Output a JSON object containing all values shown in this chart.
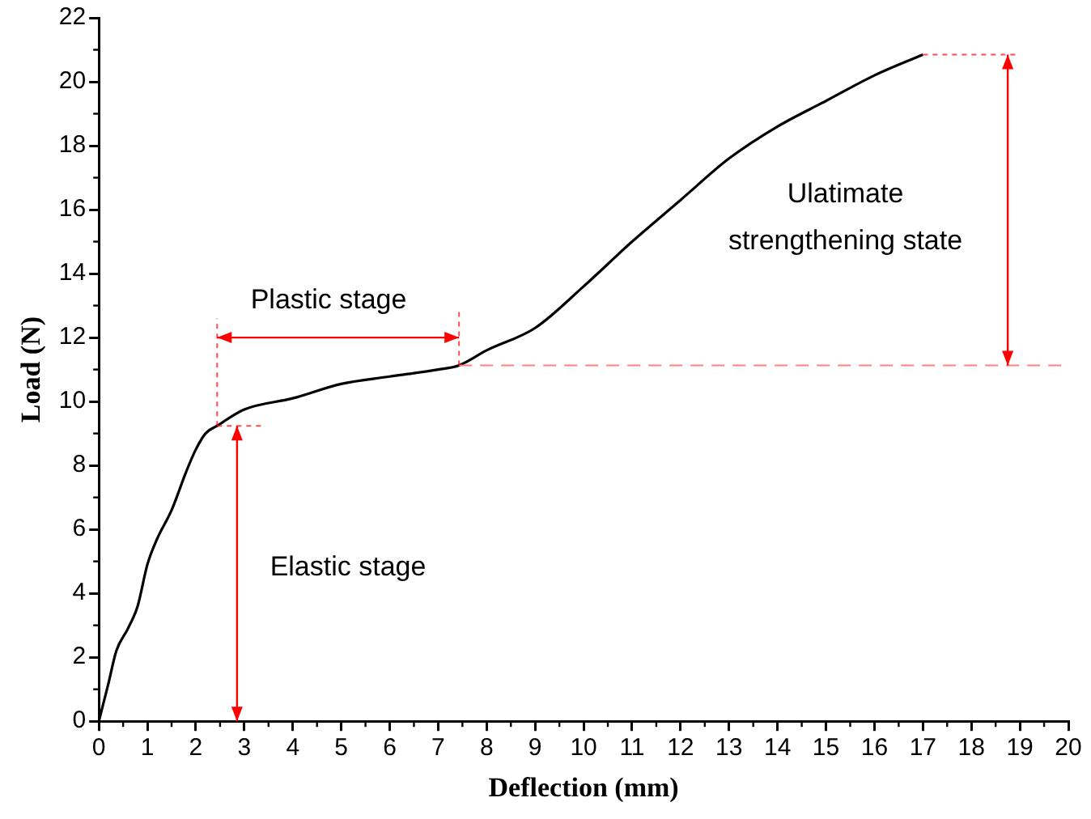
{
  "chart_data": {
    "type": "line",
    "xlabel": "Deflection (mm)",
    "ylabel": "Load (N)",
    "x": [
      0,
      0.2,
      0.36,
      0.6,
      0.8,
      1,
      1.2,
      1.5,
      1.8,
      2,
      2.2,
      2.44,
      3,
      4,
      5,
      6,
      7,
      7.43,
      8,
      9,
      10,
      11,
      12,
      13,
      14,
      15,
      16,
      17
    ],
    "series": [
      {
        "color": "#000000",
        "values": [
          0,
          1.2,
          2.2,
          2.9,
          3.6,
          4.9,
          5.7,
          6.6,
          7.8,
          8.5,
          9.0,
          9.24,
          9.75,
          10.1,
          10.55,
          10.78,
          11.0,
          11.13,
          11.6,
          12.3,
          13.6,
          15.0,
          16.3,
          17.6,
          18.6,
          19.4,
          20.2,
          20.85
        ]
      }
    ],
    "xlim": [
      0,
      20
    ],
    "xticks": [
      0,
      1,
      2,
      3,
      4,
      5,
      6,
      7,
      8,
      9,
      10,
      11,
      12,
      13,
      14,
      15,
      16,
      17,
      18,
      19,
      20
    ],
    "ylim": [
      0,
      22
    ],
    "yticks": [
      0,
      2,
      4,
      6,
      8,
      10,
      12,
      14,
      16,
      18,
      20,
      22
    ],
    "grid": false,
    "legend": false,
    "marker": "none",
    "line_style": "solid",
    "ref_lines": [
      {
        "axis": "y",
        "value": 11.13,
        "color": "#ff8080",
        "line_style": "dashed"
      }
    ],
    "annotations": [
      {
        "text": "Plastic stage",
        "x": 2.44,
        "y": 9.24
      },
      "Elastic stage",
      "Ulatimate\nstrengthening state"
    ]
  }
}
